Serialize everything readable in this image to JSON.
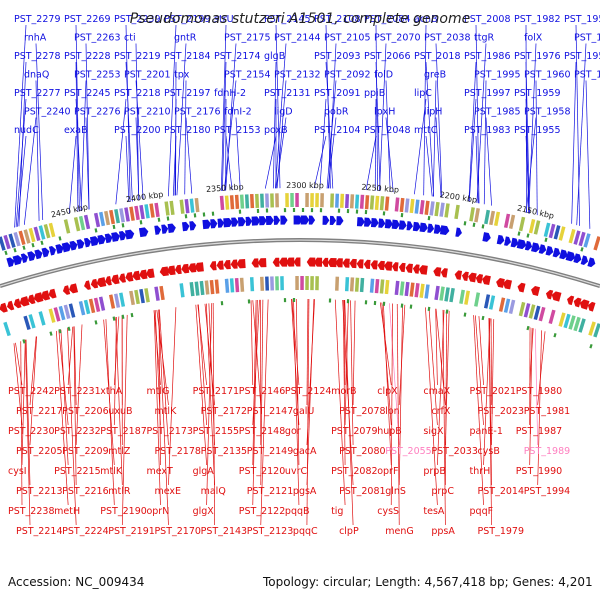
{
  "title": "Pseudomonas stutzeri A1501, complete genome",
  "footer": {
    "accession": "Accession: NC_009434",
    "stats": "Topology: circular; Length: 4,567,418 bp; Genes: 4,201"
  },
  "colors": {
    "forward": "#1010e0",
    "reverse": "#e01010",
    "pseudo": "#ff80c0",
    "backbone": "#808080",
    "gc_mark": "#3a9a3a"
  },
  "kbp_ticks": [
    "2450 kbp",
    "2400 kbp",
    "2350 kbp",
    "2300 kbp",
    "2250 kbp",
    "2200 kbp",
    "2150 kbp"
  ],
  "top_labels": [
    "PST_2279",
    "rnhA",
    "PST_2278",
    "dnaQ",
    "PST_2277",
    "PST_2240",
    "nudC",
    "PST_2269",
    "PST_2263",
    "PST_2228",
    "PST_2253",
    "PST_2245",
    "PST_2276",
    "exaB",
    "PST_2239",
    "cti",
    "PST_2219",
    "PST_2201",
    "PST_2218",
    "PST_2210",
    "PST_2200",
    "PST_2199",
    "gntR",
    "PST_2184",
    "tpx",
    "PST_2197",
    "PST_2176",
    "PST_2180",
    "strU",
    "PST_2175",
    "PST_2174",
    "PST_2154",
    "fdnH-2",
    "fdnI-2",
    "PST_2153",
    "PST_2145",
    "PST_2144",
    "glgB",
    "PST_2132",
    "PST_2131",
    "ligD",
    "poxB",
    "PST_2108",
    "PST_2105",
    "PST_2093",
    "PST_2092",
    "PST_2091",
    "pobR",
    "PST_2104",
    "PST_2084",
    "PST_2070",
    "PST_2066",
    "folD",
    "ppiB",
    "lpxH",
    "PST_2048",
    "acnB",
    "PST_2038",
    "PST_2018",
    "greB",
    "lipC",
    "lipH",
    "mttC",
    "PST_2008",
    "ttgR",
    "PST_1986",
    "PST_1995",
    "PST_1997",
    "PST_1985",
    "PST_1983",
    "PST_1982",
    "folX",
    "PST_1976",
    "PST_1960",
    "PST_1959",
    "PST_1958",
    "PST_1955",
    "PST_1954",
    "PST_1953",
    "PST_1952",
    "PST_1956"
  ],
  "bottom_labels": [
    "PST_2242",
    "PST_2217",
    "PST_2230",
    "PST_2205",
    "cysI",
    "PST_2213",
    "PST_2238",
    "PST_2214",
    "PST_2231",
    "PST_2206",
    "PST_2232",
    "PST_2209",
    "PST_2215",
    "PST_2216",
    "metH",
    "PST_2224",
    "xthA",
    "uxuB",
    "PST_2187",
    "mtlZ",
    "mtlK",
    "mtlR",
    "PST_2190",
    "PST_2191",
    "mtlG",
    "mtlK",
    "PST_2173",
    "PST_2178",
    "mexT",
    "mexE",
    "oprN",
    "PST_2170",
    "PST_2171",
    "PST_2172",
    "PST_2155",
    "PST_2135",
    "glgA",
    "malQ",
    "glgX",
    "PST_2143",
    "PST_2146",
    "PST_2147",
    "PST_2148",
    "PST_2149",
    "PST_2120",
    "PST_2121",
    "PST_2122",
    "PST_2123",
    "PST_2124",
    "galU",
    "gor",
    "gacA",
    "uvrC",
    "pgsA",
    "pqqB",
    "pqqC",
    "morB",
    "PST_2078",
    "PST_2079",
    "PST_2080",
    "PST_2082",
    "PST_2081",
    "tig",
    "clpP",
    "clpX",
    "lon",
    "hupB",
    "PST_2055",
    "oprF",
    "glnS",
    "cysS",
    "menG",
    "cmaX",
    "crfX",
    "sigX",
    "PST_2033",
    "prpB",
    "prpC",
    "tesA",
    "ppsA",
    "PST_2021",
    "PST_2023",
    "panE-1",
    "cysB",
    "thrH",
    "PST_2014",
    "pqqF",
    "PST_1979",
    "PST_1980",
    "PST_1981",
    "PST_1987",
    "PST_1989",
    "PST_1990",
    "PST_1994"
  ]
}
